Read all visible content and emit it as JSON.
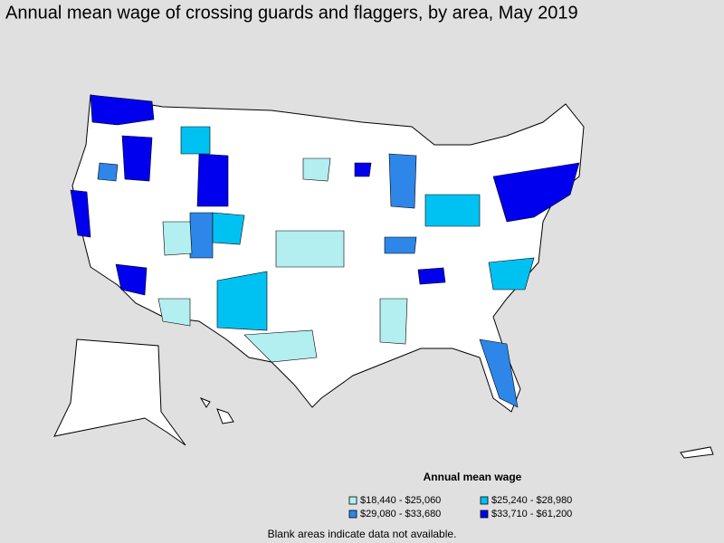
{
  "title": "Annual mean wage of crossing guards and flaggers, by area, May 2019",
  "legend": {
    "title": "Annual mean wage",
    "items": [
      {
        "label": "$18,440 - $25,060",
        "color": "#b3eef0"
      },
      {
        "label": "$25,240 - $28,980",
        "color": "#00c2f2"
      },
      {
        "label": "$29,080 - $33,680",
        "color": "#2e86e8"
      },
      {
        "label": "$33,710 - $61,200",
        "color": "#0000ee"
      }
    ]
  },
  "footnote": "Blank areas indicate data not available."
}
